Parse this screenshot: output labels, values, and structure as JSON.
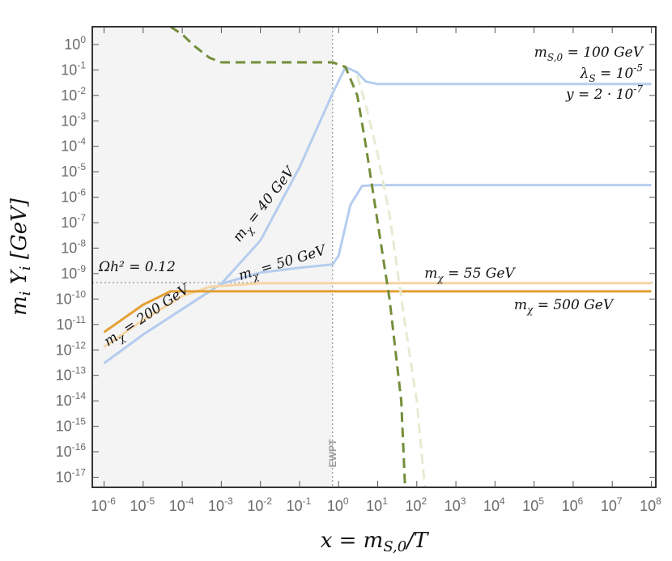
{
  "chart_data": {
    "type": "line",
    "title": "",
    "xlabel": "x = m_{S,0}/T",
    "ylabel": "m_i Y_i  [GeV]",
    "xscale": "log",
    "yscale": "log",
    "xlim": [
      5e-07,
      130000000.0
    ],
    "ylim": [
      4e-18,
      5
    ],
    "x_ticks": [
      "10^-6",
      "10^-5",
      "10^-4",
      "10^-3",
      "10^-2",
      "10^-1",
      "10^0",
      "10^1",
      "10^2",
      "10^3",
      "10^4",
      "10^5",
      "10^6",
      "10^7",
      "10^8"
    ],
    "y_ticks": [
      "10^0",
      "10^-1",
      "10^-2",
      "10^-3",
      "10^-4",
      "10^-5",
      "10^-6",
      "10^-7",
      "10^-8",
      "10^-9",
      "10^-10",
      "10^-11",
      "10^-12",
      "10^-13",
      "10^-14",
      "10^-15",
      "10^-16",
      "10^-17"
    ],
    "grid": false,
    "shaded_region": {
      "x_from": 5e-07,
      "x_to": 0.7,
      "color": "#f4f4f4"
    },
    "vertical_marker": {
      "x": 0.7,
      "label": "EWPT"
    },
    "horizontal_marker": {
      "y": 4.4e-10,
      "label": "Ωh² = 0.12"
    },
    "parameters": [
      "m_{S,0} = 100 GeV",
      "λ_S = 10^-5",
      "y = 2 · 10^-7"
    ],
    "series": [
      {
        "color": "#b5cdee",
        "style": "solid",
        "points": [
          [
            1e-06,
            3e-13
          ],
          [
            1e-05,
            4e-12
          ],
          [
            0.0001,
            4e-11
          ],
          [
            0.001,
            4e-10
          ],
          [
            0.01,
            2e-08
          ],
          [
            0.1,
            1.5e-05
          ],
          [
            0.7,
            0.012
          ],
          [
            1.5,
            0.13
          ],
          [
            3,
            0.08
          ],
          [
            5,
            0.035
          ],
          [
            10,
            0.028
          ],
          [
            100000000.0,
            0.028
          ]
        ]
      },
      {
        "color": "#b5cdee",
        "style": "solid",
        "points": [
          [
            1e-06,
            3e-13
          ],
          [
            1e-05,
            4e-12
          ],
          [
            0.0001,
            4e-11
          ],
          [
            0.001,
            4e-10
          ],
          [
            0.01,
            1.1e-09
          ],
          [
            0.1,
            1.7e-09
          ],
          [
            0.7,
            2.3e-09
          ],
          [
            1,
            5e-09
          ],
          [
            2,
            5e-07
          ],
          [
            4,
            2.8e-06
          ],
          [
            10,
            3e-06
          ],
          [
            100000000.0,
            3e-06
          ]
        ]
      },
      {
        "color": "#f5d5a5",
        "style": "solid",
        "points": [
          [
            1e-06,
            1.3e-12
          ],
          [
            1e-05,
            1.5e-11
          ],
          [
            0.0001,
            1.3e-10
          ],
          [
            0.0005,
            3e-10
          ],
          [
            0.01,
            4.2e-10
          ],
          [
            100000000.0,
            4.2e-10
          ]
        ]
      },
      {
        "color": "#e3a033",
        "style": "solid",
        "points": [
          [
            1e-06,
            5e-12
          ],
          [
            1e-05,
            6e-11
          ],
          [
            5e-05,
            2e-10
          ],
          [
            100000000.0,
            2e-10
          ]
        ]
      },
      {
        "color": "#748e3a",
        "style": "dashed",
        "points": [
          [
            5e-05,
            5
          ],
          [
            0.0001,
            2.5
          ],
          [
            0.0002,
            0.9
          ],
          [
            0.0005,
            0.3
          ],
          [
            0.001,
            0.2
          ],
          [
            0.7,
            0.2
          ],
          [
            1.5,
            0.13
          ],
          [
            3,
            0.01
          ],
          [
            5,
            0.0001
          ],
          [
            10,
            1e-07
          ],
          [
            20,
            1e-10
          ],
          [
            40,
            1e-14
          ],
          [
            50,
            4e-18
          ]
        ]
      },
      {
        "color": "#e6ebd2",
        "style": "dashed",
        "points": [
          [
            3,
            0.06
          ],
          [
            5,
            0.004
          ],
          [
            10,
            5e-05
          ],
          [
            20,
            2e-07
          ],
          [
            50,
            1e-11
          ],
          [
            100,
            1e-14
          ],
          [
            160,
            4e-18
          ]
        ]
      }
    ],
    "labels": {
      "m40": "m_χ = 40 GeV",
      "m50": "m_χ = 50 GeV",
      "m55": "m_χ = 55 GeV",
      "m200": "m_χ = 200 GeV",
      "m500": "m_χ = 500 GeV",
      "omega": "Ωh² = 0.12"
    }
  }
}
